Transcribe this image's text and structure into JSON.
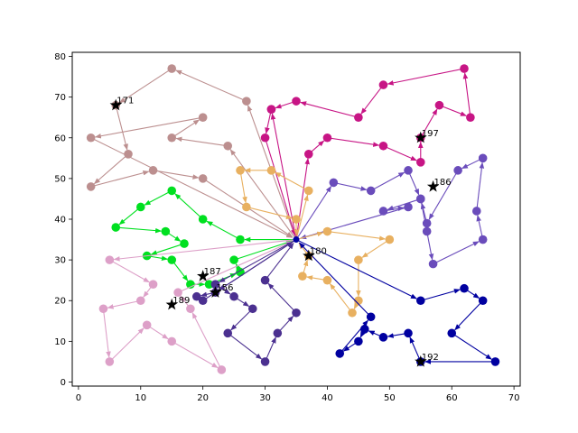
{
  "chart_data": {
    "type": "scatter",
    "title": "",
    "xlabel": "",
    "ylabel": "",
    "xlim": [
      -1,
      71
    ],
    "ylim": [
      -1,
      81
    ],
    "xticks": [
      0,
      10,
      20,
      30,
      40,
      50,
      60,
      70
    ],
    "yticks": [
      0,
      10,
      20,
      30,
      40,
      50,
      60,
      70,
      80
    ],
    "grid": false,
    "depot": [
      35,
      35
    ],
    "routes": [
      {
        "color": "#bc8f8f",
        "points": [
          [
            35,
            35
          ],
          [
            27,
            69
          ],
          [
            15,
            77
          ],
          [
            6,
            68
          ],
          [
            8,
            56
          ],
          [
            2,
            48
          ],
          [
            12,
            52
          ],
          [
            20,
            50
          ],
          [
            35,
            35
          ],
          [
            24,
            58
          ],
          [
            15,
            60
          ],
          [
            20,
            65
          ],
          [
            2,
            60
          ],
          [
            35,
            35
          ]
        ]
      },
      {
        "color": "#c71585",
        "points": [
          [
            35,
            35
          ],
          [
            31,
            67
          ],
          [
            30,
            60
          ],
          [
            35,
            35
          ],
          [
            37,
            56
          ],
          [
            40,
            60
          ],
          [
            49,
            58
          ],
          [
            55,
            54
          ],
          [
            55,
            60
          ],
          [
            58,
            68
          ],
          [
            63,
            65
          ],
          [
            62,
            77
          ],
          [
            49,
            73
          ],
          [
            45,
            65
          ],
          [
            35,
            69
          ],
          [
            31,
            67
          ]
        ]
      },
      {
        "color": "#6a4cbb",
        "points": [
          [
            35,
            35
          ],
          [
            41,
            49
          ],
          [
            47,
            47
          ],
          [
            53,
            52
          ],
          [
            55,
            45
          ],
          [
            56,
            37
          ],
          [
            57,
            29
          ],
          [
            65,
            35
          ],
          [
            64,
            42
          ],
          [
            65,
            55
          ],
          [
            61,
            52
          ],
          [
            56,
            39
          ],
          [
            55,
            45
          ],
          [
            49,
            42
          ],
          [
            53,
            43
          ],
          [
            35,
            35
          ]
        ]
      },
      {
        "color": "#e8b060",
        "points": [
          [
            35,
            35
          ],
          [
            37,
            47
          ],
          [
            31,
            52
          ],
          [
            26,
            52
          ],
          [
            27,
            43
          ],
          [
            35,
            40
          ],
          [
            35,
            35
          ],
          [
            40,
            37
          ],
          [
            50,
            35
          ],
          [
            45,
            30
          ],
          [
            45,
            20
          ],
          [
            44,
            17
          ],
          [
            40,
            25
          ],
          [
            36,
            26
          ],
          [
            37,
            31
          ],
          [
            35,
            35
          ]
        ]
      },
      {
        "color": "#00e020",
        "points": [
          [
            35,
            35
          ],
          [
            26,
            35
          ],
          [
            20,
            40
          ],
          [
            15,
            47
          ],
          [
            10,
            43
          ],
          [
            6,
            38
          ],
          [
            14,
            37
          ],
          [
            17,
            34
          ],
          [
            11,
            31
          ],
          [
            15,
            30
          ],
          [
            18,
            24
          ],
          [
            21,
            24
          ],
          [
            26,
            27
          ],
          [
            25,
            30
          ],
          [
            35,
            35
          ]
        ]
      },
      {
        "color": "#dda0c8",
        "points": [
          [
            35,
            35
          ],
          [
            5,
            30
          ],
          [
            12,
            24
          ],
          [
            10,
            20
          ],
          [
            4,
            18
          ],
          [
            5,
            5
          ],
          [
            11,
            14
          ],
          [
            15,
            10
          ],
          [
            23,
            3
          ],
          [
            18,
            18
          ],
          [
            16,
            22
          ],
          [
            35,
            35
          ]
        ]
      },
      {
        "color": "#4b3090",
        "points": [
          [
            35,
            35
          ],
          [
            22,
            24
          ],
          [
            25,
            21
          ],
          [
            28,
            18
          ],
          [
            24,
            12
          ],
          [
            30,
            5
          ],
          [
            32,
            12
          ],
          [
            35,
            17
          ],
          [
            30,
            25
          ],
          [
            35,
            35
          ],
          [
            22,
            22
          ],
          [
            19,
            21
          ],
          [
            20,
            20
          ],
          [
            35,
            35
          ]
        ]
      },
      {
        "color": "#0000a0",
        "points": [
          [
            35,
            35
          ],
          [
            55,
            20
          ],
          [
            62,
            23
          ],
          [
            65,
            20
          ],
          [
            60,
            12
          ],
          [
            67,
            5
          ],
          [
            55,
            5
          ],
          [
            53,
            12
          ],
          [
            49,
            11
          ],
          [
            46,
            13
          ],
          [
            45,
            10
          ],
          [
            42,
            7
          ],
          [
            47,
            16
          ],
          [
            35,
            35
          ]
        ]
      }
    ],
    "markers": [
      {
        "label": "171",
        "x": 6,
        "y": 68
      },
      {
        "label": "197",
        "x": 55,
        "y": 60
      },
      {
        "label": "186",
        "x": 57,
        "y": 48
      },
      {
        "label": "180",
        "x": 37,
        "y": 31
      },
      {
        "label": "187",
        "x": 20,
        "y": 26
      },
      {
        "label": "156",
        "x": 22,
        "y": 22
      },
      {
        "label": "189",
        "x": 15,
        "y": 19
      },
      {
        "label": "192",
        "x": 55,
        "y": 5
      }
    ]
  }
}
